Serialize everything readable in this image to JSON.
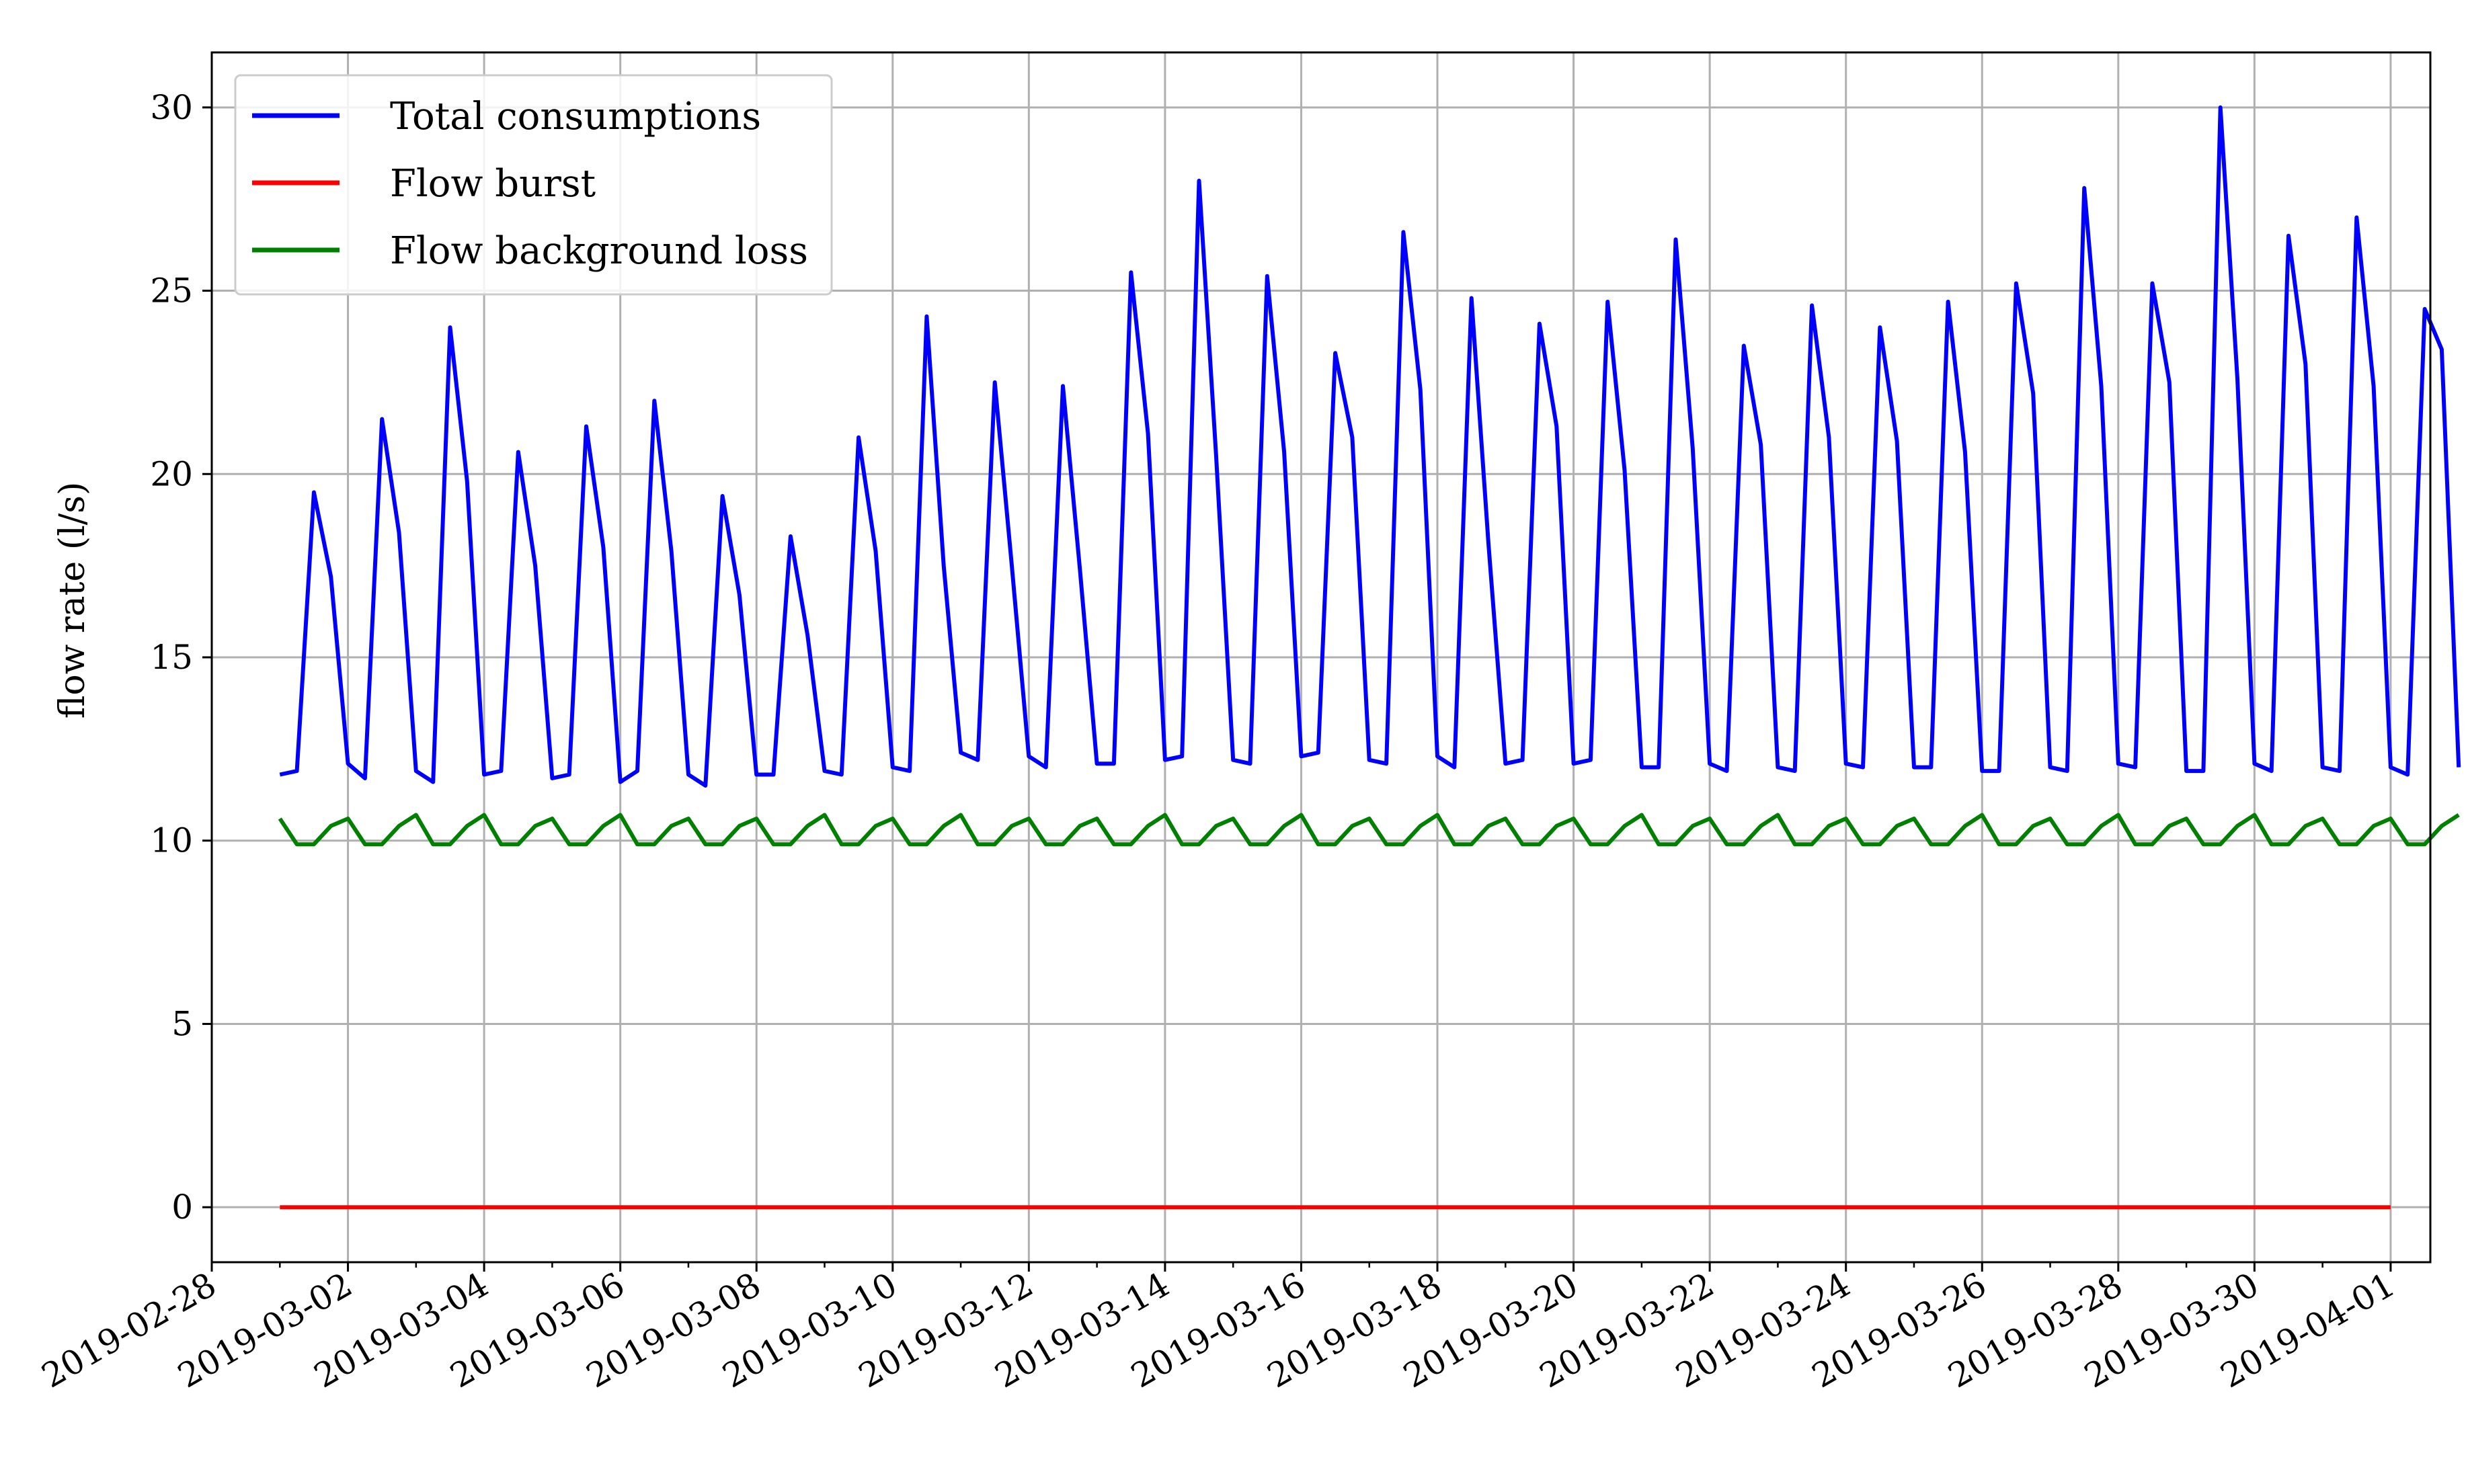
{
  "chart_data": {
    "type": "line",
    "title": "",
    "xlabel": "",
    "ylabel": "flow rate (l/s)",
    "grid": true,
    "legend_position": "upper-left",
    "ylim": [
      -1.5,
      31.5
    ],
    "xlim": [
      "2019-02-28T00:00",
      "2019-04-01T14:00"
    ],
    "yticks": [
      0,
      5,
      10,
      15,
      20,
      25,
      30
    ],
    "xticks": [
      "2019-02-28",
      "2019-03-02",
      "2019-03-04",
      "2019-03-06",
      "2019-03-08",
      "2019-03-10",
      "2019-03-12",
      "2019-03-14",
      "2019-03-16",
      "2019-03-18",
      "2019-03-20",
      "2019-03-22",
      "2019-03-24",
      "2019-03-26",
      "2019-03-28",
      "2019-03-30",
      "2019-04-01"
    ],
    "x_start": "2019-03-01T00:00",
    "x_step_hours": 6,
    "series": [
      {
        "name": "Total consumptions",
        "color": "#0000ff",
        "values": [
          11.8,
          11.9,
          19.5,
          17.2,
          12.1,
          11.7,
          21.5,
          18.4,
          11.9,
          11.6,
          24.0,
          19.8,
          11.8,
          11.9,
          20.6,
          17.5,
          11.7,
          11.8,
          21.3,
          18.0,
          11.6,
          11.9,
          22.0,
          17.9,
          11.8,
          11.5,
          19.4,
          16.7,
          11.8,
          11.8,
          18.3,
          15.6,
          11.9,
          11.8,
          21.0,
          17.9,
          12.0,
          11.9,
          24.3,
          17.5,
          12.4,
          12.2,
          22.5,
          17.5,
          12.3,
          12.0,
          22.4,
          17.4,
          12.1,
          12.1,
          25.5,
          21.1,
          12.2,
          12.3,
          28.0,
          20.5,
          12.2,
          12.1,
          25.4,
          20.6,
          12.3,
          12.4,
          23.3,
          21.0,
          12.2,
          12.1,
          26.6,
          22.3,
          12.3,
          12.0,
          24.8,
          18.1,
          12.1,
          12.2,
          24.1,
          21.3,
          12.1,
          12.2,
          24.7,
          20.1,
          12.0,
          12.0,
          26.4,
          20.7,
          12.1,
          11.9,
          23.5,
          20.8,
          12.0,
          11.9,
          24.6,
          21.0,
          12.1,
          12.0,
          24.0,
          20.9,
          12.0,
          12.0,
          24.7,
          20.6,
          11.9,
          11.9,
          25.2,
          22.2,
          12.0,
          11.9,
          27.8,
          22.4,
          12.1,
          12.0,
          25.2,
          22.5,
          11.9,
          11.9,
          30.0,
          22.6,
          12.1,
          11.9,
          26.5,
          23.0,
          12.0,
          11.9,
          27.0,
          22.4,
          12.0,
          11.8,
          24.5,
          23.4,
          12.0
        ]
      },
      {
        "name": "Flow burst",
        "color": "#ff0000",
        "values": [
          0,
          0
        ]
      },
      {
        "name": "Flow background loss",
        "color": "#008000",
        "values": [
          10.6,
          9.9,
          9.9,
          10.4,
          10.6,
          9.9,
          9.9,
          10.4,
          10.7,
          9.9,
          9.9,
          10.4,
          10.7,
          9.9,
          9.9,
          10.4,
          10.6,
          9.9,
          9.9,
          10.4,
          10.7,
          9.9,
          9.9,
          10.4,
          10.6,
          9.9,
          9.9,
          10.4,
          10.6,
          9.9,
          9.9,
          10.4,
          10.7,
          9.9,
          9.9,
          10.4,
          10.6,
          9.9,
          9.9,
          10.4,
          10.7,
          9.9,
          9.9,
          10.4,
          10.6,
          9.9,
          9.9,
          10.4,
          10.6,
          9.9,
          9.9,
          10.4,
          10.7,
          9.9,
          9.9,
          10.4,
          10.6,
          9.9,
          9.9,
          10.4,
          10.7,
          9.9,
          9.9,
          10.4,
          10.6,
          9.9,
          9.9,
          10.4,
          10.7,
          9.9,
          9.9,
          10.4,
          10.6,
          9.9,
          9.9,
          10.4,
          10.6,
          9.9,
          9.9,
          10.4,
          10.7,
          9.9,
          9.9,
          10.4,
          10.6,
          9.9,
          9.9,
          10.4,
          10.7,
          9.9,
          9.9,
          10.4,
          10.6,
          9.9,
          9.9,
          10.4,
          10.6,
          9.9,
          9.9,
          10.4,
          10.7,
          9.9,
          9.9,
          10.4,
          10.6,
          9.9,
          9.9,
          10.4,
          10.7,
          9.9,
          9.9,
          10.4,
          10.6,
          9.9,
          9.9,
          10.4,
          10.7,
          9.9,
          9.9,
          10.4,
          10.6,
          9.9,
          9.9,
          10.4,
          10.6,
          9.9,
          9.9,
          10.4,
          10.7
        ]
      }
    ]
  }
}
